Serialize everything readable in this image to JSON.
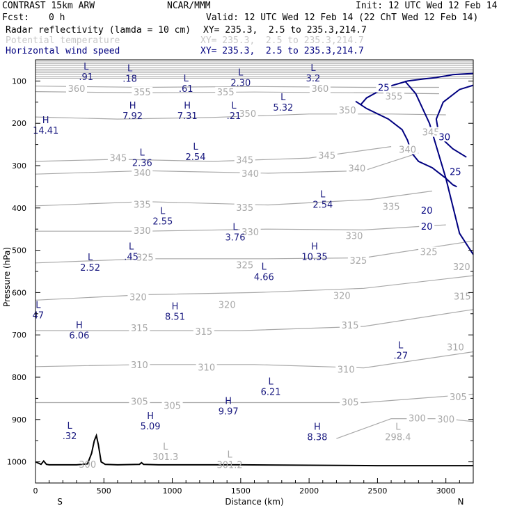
{
  "header": {
    "model": "CONTRAST 15km ARW",
    "center": "NCAR/MMM",
    "init": "Init: 12 UTC Wed 12 Feb 14",
    "fcst_label": "Fcst:",
    "fcst_value": "0 h",
    "valid": "Valid: 12 UTC Wed 12 Feb 14 (22 ChT Wed 12 Feb 14)",
    "fields": [
      {
        "name": "Radar reflectivity (lamda = 10 cm)",
        "xy": "XY= 235.3,  2.5 to 235.3,214.7",
        "color": "#000000"
      },
      {
        "name": "Potential temperature",
        "xy": "XY= 235.3,  2.5 to 235.3,214.7",
        "color": "#c8c8c8"
      },
      {
        "name": "Horizontal wind speed",
        "xy": "XY= 235.3,  2.5 to 235.3,214.7",
        "color": "#000080"
      }
    ]
  },
  "colors": {
    "theta": "#a8a8a8",
    "wind": "#000080",
    "terrain": "#000000",
    "marks": "#1a1a80"
  },
  "chart_data": {
    "type": "cross-section",
    "xlabel": "Distance (km)",
    "ylabel": "Pressure (hPa)",
    "xlim": [
      0,
      3200
    ],
    "ylim": [
      1050,
      50
    ],
    "xticks": [
      0,
      500,
      1000,
      1500,
      2000,
      2500,
      3000
    ],
    "yticks": [
      100,
      200,
      300,
      400,
      500,
      600,
      700,
      800,
      900,
      1000
    ],
    "x_end_labels": {
      "left": "S",
      "right": "N"
    },
    "terrain": {
      "x": [
        0,
        40,
        60,
        80,
        100,
        150,
        300,
        380,
        410,
        430,
        445,
        460,
        480,
        510,
        600,
        760,
        775,
        790,
        900,
        1500,
        2000,
        2500,
        3200
      ],
      "p": [
        1000,
        1006,
        998,
        1006,
        1007,
        1007,
        1007,
        1005,
        980,
        950,
        938,
        960,
        1000,
        1006,
        1007,
        1006,
        1002,
        1006,
        1007,
        1007,
        1008,
        1009,
        1009
      ]
    },
    "theta_contours": [
      {
        "value": 360,
        "x": [
          0,
          800,
          1600,
          2400,
          2950
        ],
        "p": [
          112,
          115,
          113,
          115,
          115
        ],
        "labels": [
          {
            "x": 300,
            "p": 119
          },
          {
            "x": 2080,
            "p": 119
          }
        ]
      },
      {
        "value": 355,
        "x": [
          0,
          800,
          1600,
          2400,
          2950
        ],
        "p": [
          125,
          128,
          126,
          128,
          130
        ],
        "labels": [
          {
            "x": 780,
            "p": 127
          },
          {
            "x": 1390,
            "p": 127
          },
          {
            "x": 2620,
            "p": 137
          }
        ]
      },
      {
        "value": 350,
        "x": [
          0,
          600,
          1300,
          2000,
          2600,
          3000
        ],
        "p": [
          185,
          190,
          186,
          178,
          178,
          180
        ],
        "labels": [
          {
            "x": 1550,
            "p": 178
          },
          {
            "x": 2280,
            "p": 170
          }
        ]
      },
      {
        "value": 345,
        "x": [
          0,
          600,
          1300,
          2000,
          2600
        ],
        "p": [
          290,
          285,
          290,
          282,
          255
        ],
        "labels": [
          {
            "x": 605,
            "p": 283
          },
          {
            "x": 1530,
            "p": 288
          },
          {
            "x": 2130,
            "p": 277
          },
          {
            "x": 2890,
            "p": 222
          }
        ]
      },
      {
        "value": 340,
        "x": [
          0,
          800,
          1700,
          2400,
          2800
        ],
        "p": [
          320,
          312,
          318,
          312,
          270
        ],
        "labels": [
          {
            "x": 780,
            "p": 318
          },
          {
            "x": 1570,
            "p": 320
          },
          {
            "x": 2350,
            "p": 307
          },
          {
            "x": 2720,
            "p": 263
          }
        ]
      },
      {
        "value": 335,
        "x": [
          0,
          800,
          1700,
          2450,
          2900
        ],
        "p": [
          395,
          385,
          393,
          380,
          360
        ],
        "labels": [
          {
            "x": 780,
            "p": 393
          },
          {
            "x": 1530,
            "p": 400
          },
          {
            "x": 2600,
            "p": 398
          }
        ]
      },
      {
        "value": 330,
        "x": [
          0,
          800,
          1700,
          2400,
          3000
        ],
        "p": [
          455,
          455,
          450,
          452,
          440
        ],
        "labels": [
          {
            "x": 780,
            "p": 455
          },
          {
            "x": 1570,
            "p": 458
          },
          {
            "x": 2330,
            "p": 467
          }
        ]
      },
      {
        "value": 325,
        "x": [
          0,
          800,
          1700,
          2400,
          3200
        ],
        "p": [
          530,
          520,
          520,
          518,
          478
        ],
        "labels": [
          {
            "x": 800,
            "p": 518
          },
          {
            "x": 1530,
            "p": 536
          },
          {
            "x": 2360,
            "p": 525
          },
          {
            "x": 2875,
            "p": 505
          }
        ]
      },
      {
        "value": 320,
        "x": [
          0,
          800,
          1600,
          2400,
          3200
        ],
        "p": [
          618,
          605,
          600,
          590,
          560
        ],
        "labels": [
          {
            "x": 750,
            "p": 612
          },
          {
            "x": 1400,
            "p": 630
          },
          {
            "x": 2240,
            "p": 608
          },
          {
            "x": 3115,
            "p": 540
          }
        ]
      },
      {
        "value": 315,
        "x": [
          0,
          800,
          1500,
          2400,
          3200
        ],
        "p": [
          690,
          690,
          690,
          680,
          640
        ],
        "labels": [
          {
            "x": 760,
            "p": 685
          },
          {
            "x": 1230,
            "p": 693
          },
          {
            "x": 2300,
            "p": 678
          },
          {
            "x": 3120,
            "p": 610
          }
        ]
      },
      {
        "value": 310,
        "x": [
          0,
          800,
          1600,
          2400,
          3200
        ],
        "p": [
          775,
          770,
          770,
          778,
          740
        ],
        "labels": [
          {
            "x": 760,
            "p": 772
          },
          {
            "x": 1250,
            "p": 778
          },
          {
            "x": 2270,
            "p": 783
          },
          {
            "x": 3070,
            "p": 730
          }
        ]
      },
      {
        "value": 305,
        "x": [
          0,
          800,
          1600,
          2400,
          3200
        ],
        "p": [
          860,
          860,
          860,
          860,
          840
        ],
        "labels": [
          {
            "x": 760,
            "p": 858
          },
          {
            "x": 1000,
            "p": 868
          },
          {
            "x": 2300,
            "p": 860
          },
          {
            "x": 3090,
            "p": 848
          }
        ]
      },
      {
        "value": 300,
        "x": [
          2200,
          2600,
          3000,
          3200
        ],
        "p": [
          945,
          898,
          898,
          905
        ],
        "labels": [
          {
            "x": 2790,
            "p": 898
          },
          {
            "x": 3000,
            "p": 900
          }
        ]
      }
    ],
    "theta_lone_labels": [
      {
        "text": "300",
        "x": 380,
        "p": 1007
      }
    ],
    "wind_contours": [
      {
        "value": 25,
        "x": [
          2380,
          2420,
          2560,
          2720,
          2840,
          2930,
          2960,
          3000,
          3050,
          3200
        ],
        "p": [
          155,
          140,
          115,
          100,
          95,
          92,
          90,
          88,
          85,
          82
        ]
      },
      {
        "value": 25,
        "x": [
          2340,
          2420,
          2580,
          2680,
          2720,
          2750,
          2800,
          2900,
          3000,
          3050,
          3080
        ],
        "p": [
          148,
          165,
          190,
          215,
          240,
          270,
          290,
          305,
          330,
          345,
          350
        ]
      },
      {
        "value": 30,
        "x": [
          3200,
          3100,
          2980,
          2930,
          2950,
          3050,
          3150
        ],
        "p": [
          110,
          120,
          150,
          190,
          230,
          260,
          280
        ]
      },
      {
        "value": 20,
        "x": [
          2700,
          2780,
          2880,
          3000,
          3100,
          3200
        ],
        "p": [
          100,
          130,
          200,
          330,
          460,
          510
        ]
      }
    ],
    "wind_labels": [
      {
        "text": "25",
        "x": 2545,
        "p": 117
      },
      {
        "text": "30",
        "x": 2990,
        "p": 233
      },
      {
        "text": "25",
        "x": 3070,
        "p": 316
      },
      {
        "text": "20",
        "x": 2860,
        "p": 407
      },
      {
        "text": "20",
        "x": 2860,
        "p": 445
      }
    ],
    "extrema": [
      {
        "type": "L",
        "value": ".91",
        "x": 370,
        "p": 73
      },
      {
        "type": "L",
        "value": ".18",
        "x": 690,
        "p": 77
      },
      {
        "type": "L",
        "value": "2.30",
        "x": 1500,
        "p": 87
      },
      {
        "type": "L",
        "value": "3.2",
        "x": 2030,
        "p": 76
      },
      {
        "type": "L",
        "value": ".61",
        "x": 1100,
        "p": 101
      },
      {
        "type": "L",
        "value": "5.32",
        "x": 1810,
        "p": 145
      },
      {
        "type": "H",
        "value": "7.92",
        "x": 710,
        "p": 165
      },
      {
        "type": "H",
        "value": "7.31",
        "x": 1110,
        "p": 165
      },
      {
        "type": "L",
        "value": ".21",
        "x": 1450,
        "p": 165
      },
      {
        "type": "H",
        "value": "14.41",
        "x": 75,
        "p": 200
      },
      {
        "type": "L",
        "value": "2.54",
        "x": 1170,
        "p": 262
      },
      {
        "type": "L",
        "value": "2.36",
        "x": 780,
        "p": 276
      },
      {
        "type": "L",
        "value": "2.54",
        "x": 2100,
        "p": 375
      },
      {
        "type": "L",
        "value": "2.55",
        "x": 930,
        "p": 414
      },
      {
        "type": "L",
        "value": "3.76",
        "x": 1460,
        "p": 452
      },
      {
        "type": "L",
        "value": ".45",
        "x": 700,
        "p": 498
      },
      {
        "type": "H",
        "value": "10.35",
        "x": 2040,
        "p": 498
      },
      {
        "type": "L",
        "value": "2.52",
        "x": 400,
        "p": 524
      },
      {
        "type": "L",
        "value": "4.66",
        "x": 1670,
        "p": 546
      },
      {
        "type": "L",
        "value": "47",
        "x": 20,
        "p": 636
      },
      {
        "type": "H",
        "value": "8.51",
        "x": 1020,
        "p": 640
      },
      {
        "type": "H",
        "value": "6.06",
        "x": 320,
        "p": 684
      },
      {
        "type": "L",
        "value": ".27",
        "x": 2670,
        "p": 732
      },
      {
        "type": "L",
        "value": "6.21",
        "x": 1720,
        "p": 817
      },
      {
        "type": "H",
        "value": "9.97",
        "x": 1410,
        "p": 863
      },
      {
        "type": "H",
        "value": "5.09",
        "x": 840,
        "p": 899
      },
      {
        "type": "L",
        "value": ".32",
        "x": 250,
        "p": 922
      },
      {
        "type": "H",
        "value": "8.38",
        "x": 2060,
        "p": 924
      }
    ],
    "theta_extrema": [
      {
        "type": "L",
        "value": "298.4",
        "x": 2650,
        "p": 924
      },
      {
        "type": "L",
        "value": "301.3",
        "x": 950,
        "p": 971
      },
      {
        "type": "L",
        "value": "301.2",
        "x": 1420,
        "p": 990
      }
    ]
  }
}
